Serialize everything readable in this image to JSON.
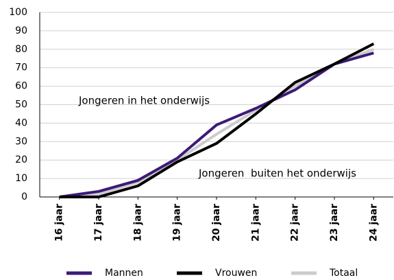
{
  "chart_data": {
    "type": "line",
    "categories": [
      "16 jaar",
      "17 jaar",
      "18 jaar",
      "19 jaar",
      "20 jaar",
      "21 jaar",
      "22 jaar",
      "23 jaar",
      "24 jaar"
    ],
    "series": [
      {
        "name": "Mannen",
        "color": "#3d1a78",
        "values": [
          0,
          3,
          9,
          21,
          39,
          48,
          58,
          72,
          78
        ]
      },
      {
        "name": "Vrouwen",
        "color": "#000000",
        "values": [
          0,
          0,
          6,
          19,
          29,
          45,
          62,
          72,
          83
        ]
      },
      {
        "name": "Totaal",
        "color": "#cccccc",
        "values": [
          0,
          1.5,
          8,
          20,
          34,
          47,
          60,
          72,
          80
        ]
      }
    ],
    "annotations": [
      "Jongeren in het onderwijs",
      "Jongeren  buiten het onderwijs"
    ],
    "ylim": [
      0,
      100
    ],
    "yticks": [
      0,
      10,
      20,
      30,
      40,
      50,
      60,
      70,
      80,
      90,
      100
    ],
    "grid": true,
    "legend": "bottom"
  }
}
